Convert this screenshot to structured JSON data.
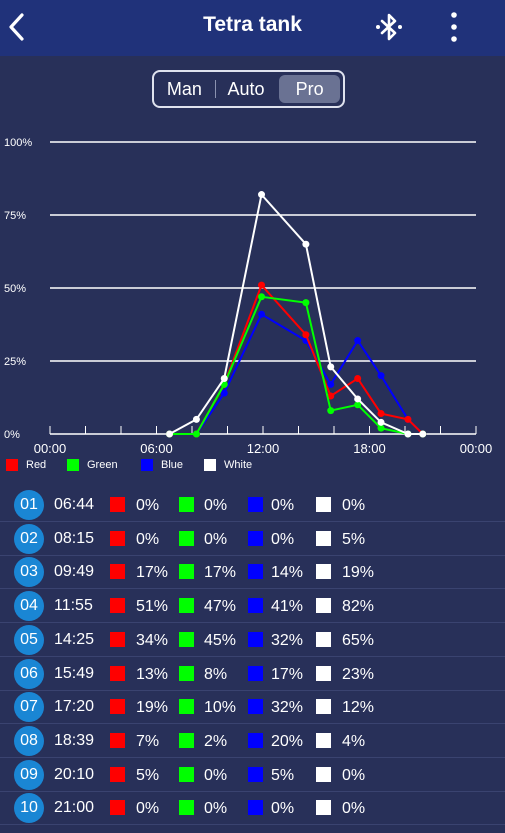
{
  "header": {
    "title": "Tetra tank",
    "back_icon": "chevron-left-icon",
    "bluetooth_icon": "bluetooth-icon",
    "menu_icon": "more-vertical-icon"
  },
  "modes": [
    {
      "label": "Man",
      "active": false
    },
    {
      "label": "Auto",
      "active": false
    },
    {
      "label": "Pro",
      "active": true
    }
  ],
  "colors": {
    "red": "#ff0000",
    "green": "#00ff00",
    "blue": "#0000ff",
    "white": "#ffffff"
  },
  "chart_data": {
    "type": "line",
    "y_ticks": [
      "100%",
      "75%",
      "50%",
      "25%",
      "0%"
    ],
    "x_ticks": [
      "00:00",
      "06:00",
      "12:00",
      "18:00",
      "00:00"
    ],
    "ylim": [
      0,
      100
    ],
    "xlim": [
      0,
      24
    ],
    "x": [
      "06:44",
      "08:15",
      "09:49",
      "11:55",
      "14:25",
      "15:49",
      "17:20",
      "18:39",
      "20:10",
      "21:00"
    ],
    "series": [
      {
        "name": "Red",
        "values": [
          0,
          0,
          17,
          51,
          34,
          13,
          19,
          7,
          5,
          0
        ]
      },
      {
        "name": "Green",
        "values": [
          0,
          0,
          17,
          47,
          45,
          8,
          10,
          2,
          0,
          0
        ]
      },
      {
        "name": "Blue",
        "values": [
          0,
          0,
          14,
          41,
          32,
          17,
          32,
          20,
          5,
          0
        ]
      },
      {
        "name": "White",
        "values": [
          0,
          5,
          19,
          82,
          65,
          23,
          12,
          4,
          0,
          0
        ]
      }
    ],
    "grid": true,
    "legend_position": "bottom-left"
  },
  "points": [
    {
      "num": "01",
      "time": "06:44",
      "red": "0%",
      "green": "0%",
      "blue": "0%",
      "white": "0%"
    },
    {
      "num": "02",
      "time": "08:15",
      "red": "0%",
      "green": "0%",
      "blue": "0%",
      "white": "5%"
    },
    {
      "num": "03",
      "time": "09:49",
      "red": "17%",
      "green": "17%",
      "blue": "14%",
      "white": "19%"
    },
    {
      "num": "04",
      "time": "11:55",
      "red": "51%",
      "green": "47%",
      "blue": "41%",
      "white": "82%"
    },
    {
      "num": "05",
      "time": "14:25",
      "red": "34%",
      "green": "45%",
      "blue": "32%",
      "white": "65%"
    },
    {
      "num": "06",
      "time": "15:49",
      "red": "13%",
      "green": "8%",
      "blue": "17%",
      "white": "23%"
    },
    {
      "num": "07",
      "time": "17:20",
      "red": "19%",
      "green": "10%",
      "blue": "32%",
      "white": "12%"
    },
    {
      "num": "08",
      "time": "18:39",
      "red": "7%",
      "green": "2%",
      "blue": "20%",
      "white": "4%"
    },
    {
      "num": "09",
      "time": "20:10",
      "red": "5%",
      "green": "0%",
      "blue": "5%",
      "white": "0%"
    },
    {
      "num": "10",
      "time": "21:00",
      "red": "0%",
      "green": "0%",
      "blue": "0%",
      "white": "0%"
    }
  ]
}
